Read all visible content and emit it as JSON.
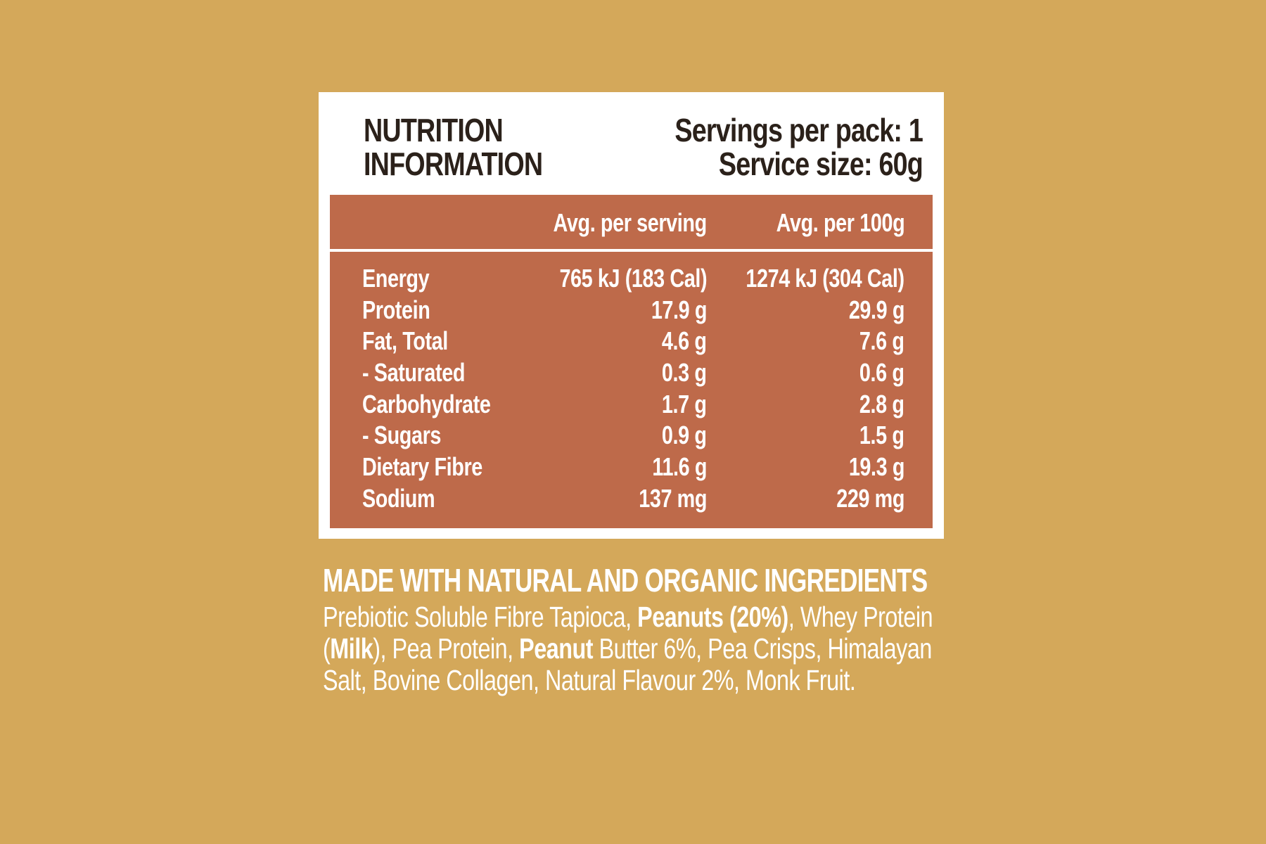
{
  "panel": {
    "title_line1": "NUTRITION",
    "title_line2": "INFORMATION",
    "servings_per_pack": "Servings per pack: 1",
    "service_size": "Service size: 60g"
  },
  "table": {
    "header": {
      "per_serving": "Avg. per serving",
      "per_100g": "Avg. per 100g"
    },
    "rows": [
      {
        "name": "Energy",
        "per_serving": "765 kJ (183 Cal)",
        "per_100g": "1274 kJ (304 Cal)"
      },
      {
        "name": "Protein",
        "per_serving": "17.9 g",
        "per_100g": "29.9 g"
      },
      {
        "name": "Fat, Total",
        "per_serving": "4.6 g",
        "per_100g": "7.6 g"
      },
      {
        "name": "- Saturated",
        "per_serving": "0.3 g",
        "per_100g": "0.6 g"
      },
      {
        "name": "Carbohydrate",
        "per_serving": "1.7 g",
        "per_100g": "2.8 g"
      },
      {
        "name": "- Sugars",
        "per_serving": "0.9 g",
        "per_100g": "1.5 g"
      },
      {
        "name": "Dietary Fibre",
        "per_serving": "11.6 g",
        "per_100g": "19.3 g"
      },
      {
        "name": "Sodium",
        "per_serving": "137 mg",
        "per_100g": "229 mg"
      }
    ]
  },
  "ingredients": {
    "title": "MADE WITH NATURAL AND ORGANIC INGREDIENTS",
    "parts": [
      {
        "text": "Prebiotic Soluble Fibre Tapioca, ",
        "bold": false
      },
      {
        "text": "Peanuts (20%)",
        "bold": true
      },
      {
        "text": ", Whey Protein (",
        "bold": false
      },
      {
        "text": "Milk",
        "bold": true
      },
      {
        "text": "),",
        "bold": false
      },
      {
        "text": " Pea Protein, ",
        "bold": false
      },
      {
        "text": "Peanut",
        "bold": true
      },
      {
        "text": " Butter 6%, Pea Crisps, Himalayan Salt, Bovine Collagen, Natural Flavour 2%, Monk Fruit.",
        "bold": false
      }
    ]
  },
  "colors": {
    "background": "#D4A85A",
    "table": "#BE6A4A",
    "panel": "#FFFFFF",
    "title_text": "#2B211A"
  }
}
